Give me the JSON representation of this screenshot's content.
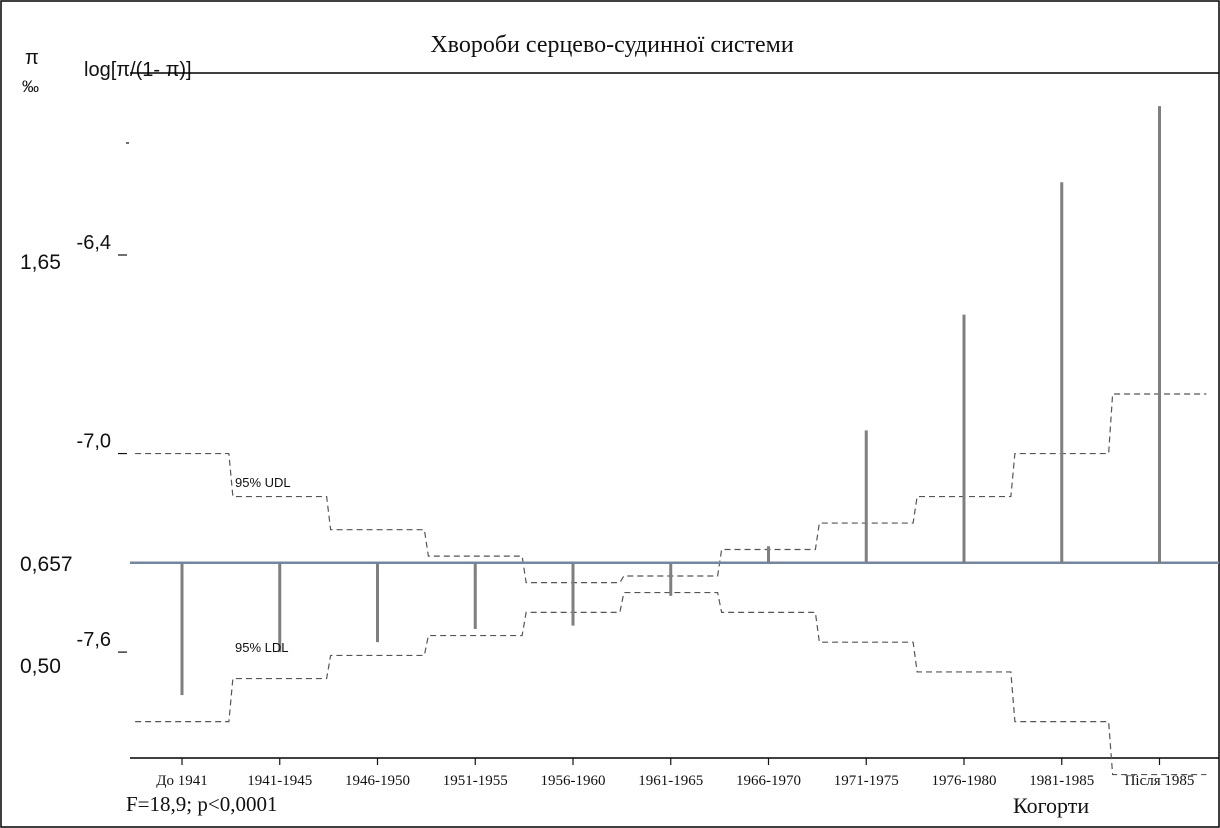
{
  "chart_data": {
    "type": "bar",
    "title": "Хвороби серцево-судинної системи",
    "y_axis_left_symbol": "π",
    "y_axis_left_unit": "‰",
    "ylabel": "log[π/(1- π)]",
    "xlabel": "Когорти",
    "footer_stat": "F=18,9; p<0,0001",
    "categories": [
      "До 1941",
      "1941-1945",
      "1946-1950",
      "1951-1955",
      "1956-1960",
      "1961-1965",
      "1966-1970",
      "1971-1975",
      "1976-1980",
      "1981-1985",
      "Після 1985"
    ],
    "reference": 0.657,
    "reference_logit": -7.33,
    "ylim": [
      -7.92,
      -5.85
    ],
    "yticks": [
      {
        "value": -6.4,
        "label": "-6,4"
      },
      {
        "value": -7.0,
        "label": "-7,0"
      },
      {
        "value": -7.6,
        "label": "-7,6"
      }
    ],
    "pi_ticks": [
      {
        "logit": -6.4,
        "label": "1,65"
      },
      {
        "logit": -7.33,
        "label": "0,657"
      },
      {
        "logit": -7.6,
        "label": "0,50"
      }
    ],
    "values": [
      -7.73,
      -7.6,
      -7.57,
      -7.53,
      -7.52,
      -7.43,
      -7.28,
      -6.93,
      -6.58,
      -6.18,
      -5.95
    ],
    "udl": [
      -7.0,
      -7.13,
      -7.23,
      -7.31,
      -7.39,
      -7.37,
      -7.29,
      -7.21,
      -7.13,
      -7.0,
      -6.82
    ],
    "ldl": [
      -7.81,
      -7.68,
      -7.61,
      -7.55,
      -7.48,
      -7.42,
      -7.48,
      -7.57,
      -7.66,
      -7.81,
      -7.97
    ],
    "series": [
      {
        "name": "95% UDL",
        "values": [
          -7.0,
          -7.13,
          -7.23,
          -7.31,
          -7.39,
          -7.37,
          -7.29,
          -7.21,
          -7.13,
          -7.0,
          -6.82
        ]
      },
      {
        "name": "95% LDL",
        "values": [
          -7.81,
          -7.68,
          -7.61,
          -7.55,
          -7.48,
          -7.42,
          -7.48,
          -7.57,
          -7.66,
          -7.81,
          -7.97
        ]
      }
    ],
    "colors": {
      "reference": "#6f87ad",
      "bars": "#7f7f7f",
      "limits": "#555555"
    }
  }
}
